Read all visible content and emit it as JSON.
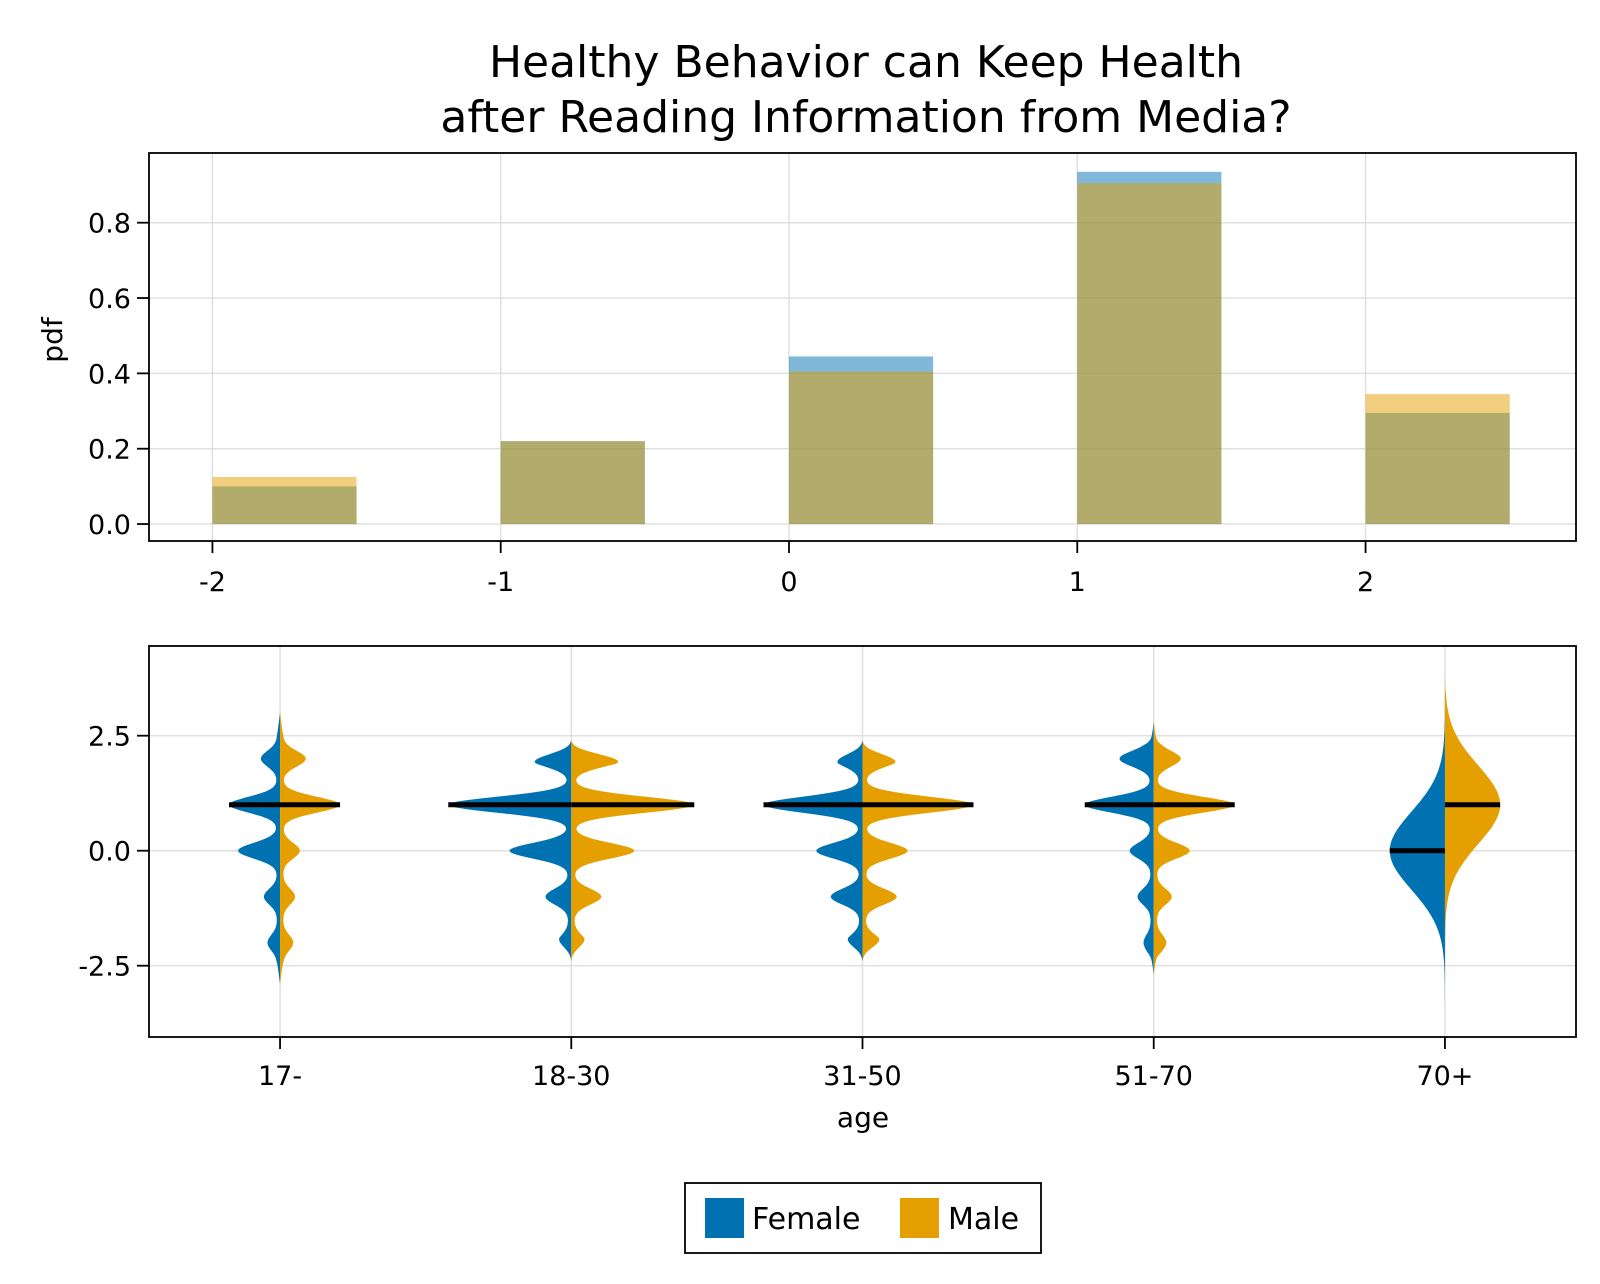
{
  "title": {
    "line1": "Healthy Behavior can Keep Health",
    "line2": "after Reading Information from Media?"
  },
  "colors": {
    "female": "#0072b2",
    "male": "#e69f00",
    "overlap_note_color": "#b0a86b",
    "grid": "#e0e0e0"
  },
  "legend": {
    "entries": [
      {
        "label": "Female",
        "color": "#0072b2"
      },
      {
        "label": "Male",
        "color": "#e69f00"
      }
    ],
    "placement": "bottom-center"
  },
  "chart_data": [
    {
      "type": "bar",
      "subtype": "overlaid histogram",
      "ylabel": "pdf",
      "xlabel": "",
      "x_ticks": [
        "-2",
        "-1",
        "0",
        "1",
        "2"
      ],
      "x_tick_values": [
        -2,
        -1,
        0,
        1,
        2
      ],
      "y_ticks": [
        "0.0",
        "0.2",
        "0.4",
        "0.6",
        "0.8"
      ],
      "y_tick_values": [
        0,
        0.2,
        0.4,
        0.6,
        0.8
      ],
      "xlim": [
        -2.22,
        2.73
      ],
      "ylim": [
        -0.045,
        0.985
      ],
      "bin_width": 0.5,
      "bin_starts": [
        -2,
        -1,
        0,
        1,
        2
      ],
      "grid": true,
      "series": [
        {
          "name": "Female",
          "color": "#0072b2",
          "values": [
            0.1,
            0.22,
            0.445,
            0.935,
            0.295
          ]
        },
        {
          "name": "Male",
          "color": "#e69f00",
          "values": [
            0.125,
            0.22,
            0.405,
            0.905,
            0.345
          ]
        }
      ]
    },
    {
      "type": "violin",
      "subtype": "split violin by sex with median line",
      "xlabel": "age",
      "ylabel": "",
      "categories": [
        "17-",
        "18-30",
        "31-50",
        "51-70",
        "70+"
      ],
      "y_ticks": [
        "-2.5",
        "0.0",
        "2.5"
      ],
      "y_tick_values": [
        -2.5,
        0,
        2.5
      ],
      "ylim": [
        -4.05,
        4.45
      ],
      "grid": true,
      "series": [
        {
          "name": "Female",
          "color": "#0072b2",
          "medians": [
            1,
            1,
            1,
            1,
            0
          ],
          "extent": [
            [
              -2.9,
              3.0
            ],
            [
              -2.4,
              2.4
            ],
            [
              -2.4,
              2.4
            ],
            [
              -2.7,
              2.8
            ],
            [
              -3.3,
              3.2
            ]
          ],
          "peaks": [
            [
              [
                2,
                0.27
              ],
              [
                1,
                0.8
              ],
              [
                0,
                0.65
              ],
              [
                -1,
                0.22
              ],
              [
                -2,
                0.16
              ]
            ],
            [
              [
                2,
                0.65
              ],
              [
                1,
                2.0
              ],
              [
                0,
                0.98
              ],
              [
                -1,
                0.38
              ],
              [
                -2,
                0.18
              ]
            ],
            [
              [
                2,
                0.43
              ],
              [
                1,
                1.6
              ],
              [
                0,
                0.72
              ],
              [
                -1,
                0.48
              ],
              [
                -2,
                0.23
              ]
            ],
            [
              [
                2,
                0.52
              ],
              [
                1,
                1.1
              ],
              [
                0,
                0.35
              ],
              [
                -1,
                0.22
              ],
              [
                -2,
                0.12
              ]
            ],
            [
              [
                0,
                1.0
              ]
            ]
          ]
        },
        {
          "name": "Male",
          "color": "#e69f00",
          "medians": [
            1,
            1,
            1,
            1,
            1
          ],
          "extent": [
            [
              -2.9,
              3.0
            ],
            [
              -2.4,
              2.4
            ],
            [
              -2.4,
              2.4
            ],
            [
              -2.7,
              2.8
            ],
            [
              -3.3,
              3.9
            ]
          ],
          "peaks": [
            [
              [
                2,
                0.38
              ],
              [
                1,
                0.95
              ],
              [
                0,
                0.28
              ],
              [
                -1,
                0.2
              ],
              [
                -2,
                0.17
              ]
            ],
            [
              [
                2,
                0.85
              ],
              [
                1,
                2.0
              ],
              [
                0,
                1.0
              ],
              [
                -1,
                0.45
              ],
              [
                -2,
                0.2
              ]
            ],
            [
              [
                2,
                0.58
              ],
              [
                1,
                1.8
              ],
              [
                0,
                0.7
              ],
              [
                -1,
                0.52
              ],
              [
                -2,
                0.27
              ]
            ],
            [
              [
                2,
                0.4
              ],
              [
                1,
                1.3
              ],
              [
                0,
                0.55
              ],
              [
                -1,
                0.25
              ],
              [
                -2,
                0.16
              ]
            ],
            [
              [
                1,
                1.0
              ]
            ]
          ]
        }
      ]
    }
  ]
}
